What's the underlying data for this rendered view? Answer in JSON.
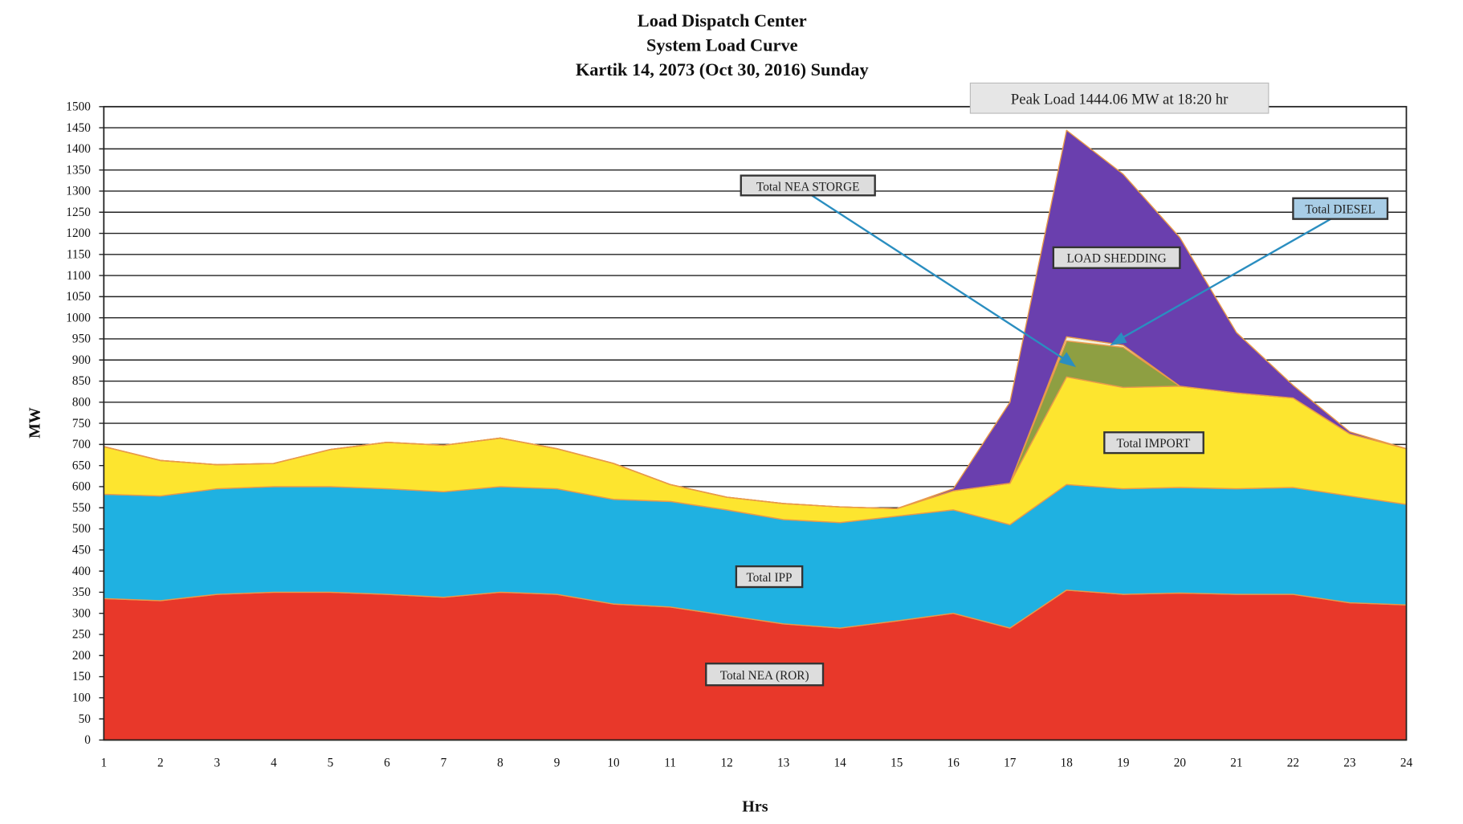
{
  "chart_data": {
    "type": "area",
    "stacked": true,
    "title": [
      "Load Dispatch Center",
      "System Load Curve",
      "Kartik 14, 2073 (Oct 30, 2016) Sunday"
    ],
    "xlabel": "Hrs",
    "ylabel": "MW",
    "ylim": [
      0,
      1500
    ],
    "ytick_step": 50,
    "grid": "horizontal",
    "x": [
      1,
      2,
      3,
      4,
      5,
      6,
      7,
      8,
      9,
      10,
      11,
      12,
      13,
      14,
      15,
      16,
      17,
      18,
      19,
      20,
      21,
      22,
      23,
      24
    ],
    "series": [
      {
        "name": "Total NEA (ROR)",
        "color": "#e8382a",
        "values": [
          335,
          330,
          345,
          350,
          350,
          345,
          338,
          350,
          345,
          322,
          315,
          295,
          275,
          265,
          282,
          300,
          265,
          355,
          345,
          348,
          345,
          345,
          325,
          320
        ]
      },
      {
        "name": "Total IPP",
        "color": "#1fb1e1",
        "values": [
          247,
          248,
          250,
          250,
          250,
          250,
          250,
          250,
          250,
          248,
          250,
          250,
          247,
          250,
          248,
          245,
          245,
          250,
          250,
          250,
          250,
          253,
          253,
          238
        ]
      },
      {
        "name": "Total IMPORT",
        "color": "#fde52f",
        "values": [
          113,
          84,
          57,
          55,
          88,
          110,
          110,
          115,
          95,
          85,
          40,
          30,
          38,
          37,
          18,
          45,
          98,
          255,
          240,
          240,
          227,
          212,
          147,
          132
        ]
      },
      {
        "name": "Total NEA STORGE",
        "color": "#8e9f42",
        "values": [
          0,
          0,
          0,
          0,
          0,
          0,
          0,
          0,
          0,
          0,
          0,
          0,
          0,
          0,
          0,
          0,
          0,
          85,
          95,
          0,
          0,
          0,
          0,
          0
        ]
      },
      {
        "name": "Total DIESEL",
        "color": "#f2f2dc",
        "values": [
          0,
          0,
          0,
          0,
          0,
          0,
          0,
          0,
          0,
          0,
          0,
          0,
          0,
          0,
          0,
          0,
          0,
          10,
          5,
          0,
          0,
          0,
          0,
          0
        ]
      },
      {
        "name": "LOAD SHEDDING",
        "color": "#6a3fae",
        "values": [
          0,
          0,
          0,
          0,
          0,
          0,
          0,
          0,
          0,
          0,
          0,
          0,
          0,
          0,
          0,
          5,
          192,
          489,
          405,
          352,
          143,
          30,
          5,
          0
        ]
      }
    ],
    "annotations": {
      "peak": "Peak Load  1444.06 MW at 18:20 hr"
    }
  }
}
